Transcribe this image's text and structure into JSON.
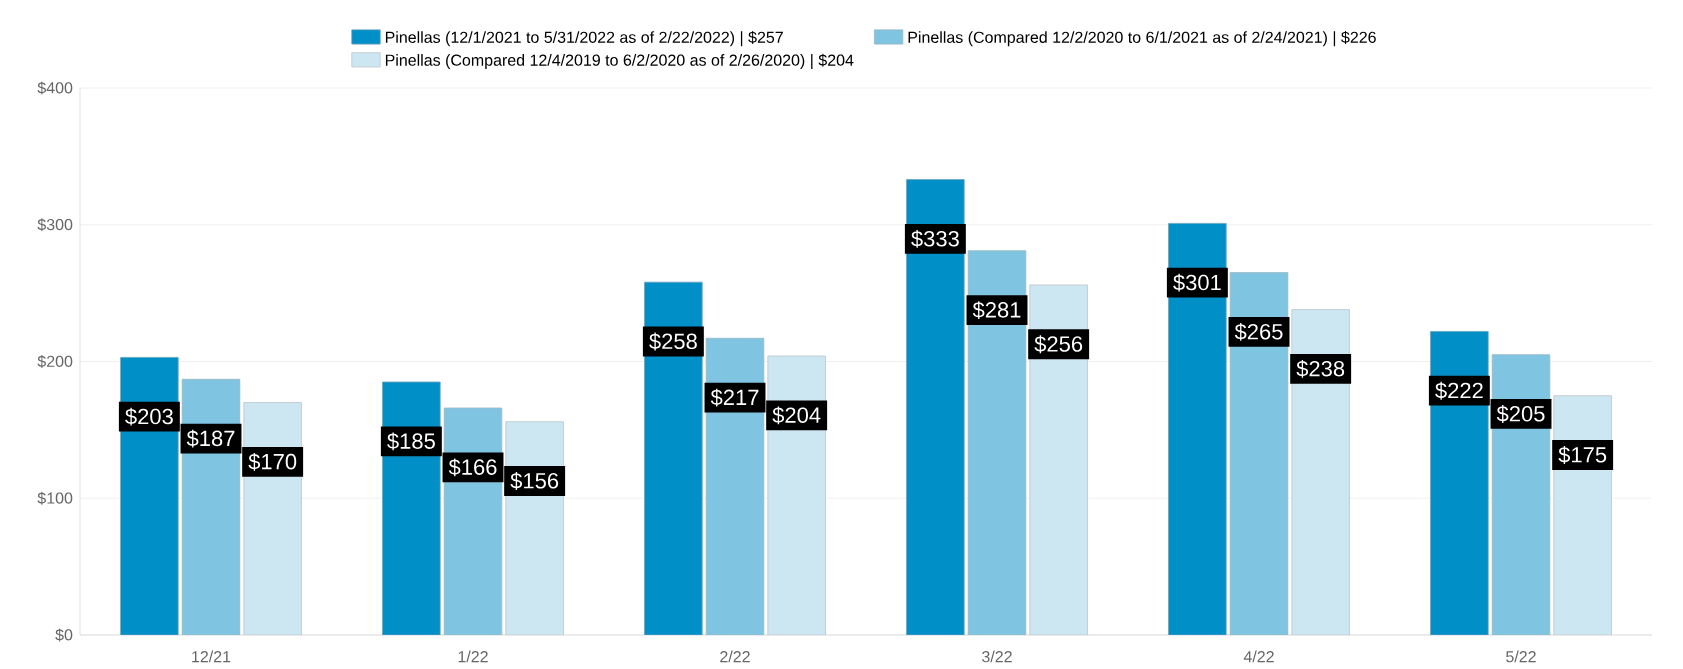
{
  "chart_data": {
    "type": "bar",
    "categories": [
      "12/21",
      "1/22",
      "2/22",
      "3/22",
      "4/22",
      "5/22"
    ],
    "series": [
      {
        "name": "Pinellas (12/1/2021 to 5/31/2022 as of 2/22/2022) | $257",
        "color": "#008fc7",
        "values": [
          203,
          185,
          258,
          333,
          301,
          222
        ],
        "value_labels": [
          "$203",
          "$185",
          "$258",
          "$333",
          "$301",
          "$222"
        ]
      },
      {
        "name": "Pinellas (Compared 12/2/2020 to 6/1/2021 as of 2/24/2021) | $226",
        "color": "#7fc4e0",
        "values": [
          187,
          166,
          217,
          281,
          265,
          205
        ],
        "value_labels": [
          "$187",
          "$166",
          "$217",
          "$281",
          "$265",
          "$205"
        ]
      },
      {
        "name": "Pinellas (Compared 12/4/2019 to 6/2/2020 as of 2/26/2020) | $204",
        "color": "#cce6f2",
        "values": [
          170,
          156,
          204,
          256,
          238,
          175
        ],
        "value_labels": [
          "$170",
          "$156",
          "$204",
          "$256",
          "$238",
          "$175"
        ]
      }
    ],
    "ylim": [
      0,
      400
    ],
    "yticks": [
      {
        "value": 0,
        "label": "$0"
      },
      {
        "value": 100,
        "label": "$100"
      },
      {
        "value": 200,
        "label": "$200"
      },
      {
        "value": 300,
        "label": "$300"
      },
      {
        "value": 400,
        "label": "$400"
      }
    ],
    "grid": "y",
    "legend": "top"
  }
}
